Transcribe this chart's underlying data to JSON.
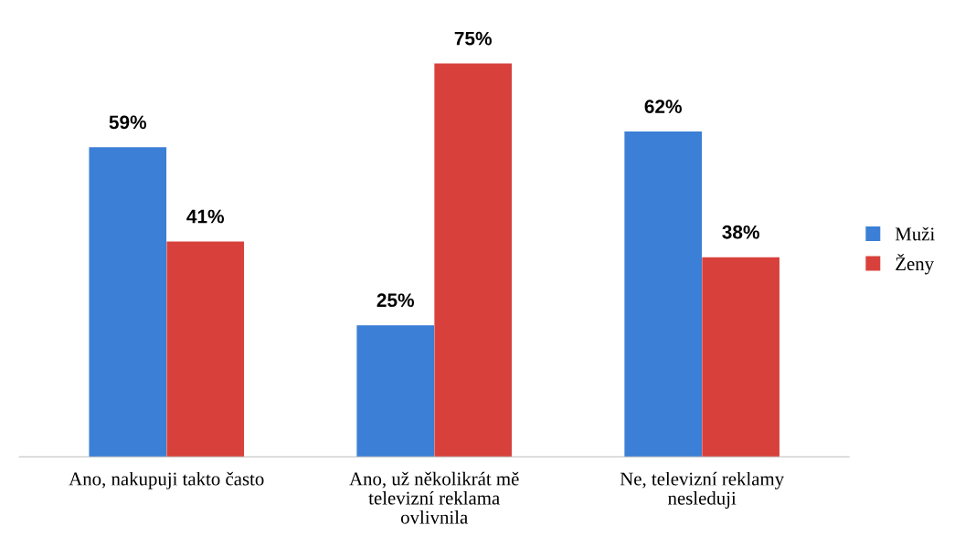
{
  "chart_data": {
    "type": "bar",
    "categories": [
      "Ano, nakupuji takto často",
      "Ano, už několikrát mě\ntelevizní reklama\novlivnila",
      "Ne, televizní reklamy\nnesleduji"
    ],
    "series": [
      {
        "name": "Muži",
        "color": "#3b7fd6",
        "values": [
          59,
          25,
          62
        ],
        "value_labels": [
          "59%",
          "25%",
          "62%"
        ]
      },
      {
        "name": "Ženy",
        "color": "#d8413b",
        "values": [
          41,
          75,
          38
        ],
        "value_labels": [
          "41%",
          "75%",
          "38%"
        ]
      }
    ],
    "legend": "right",
    "grid": false
  }
}
